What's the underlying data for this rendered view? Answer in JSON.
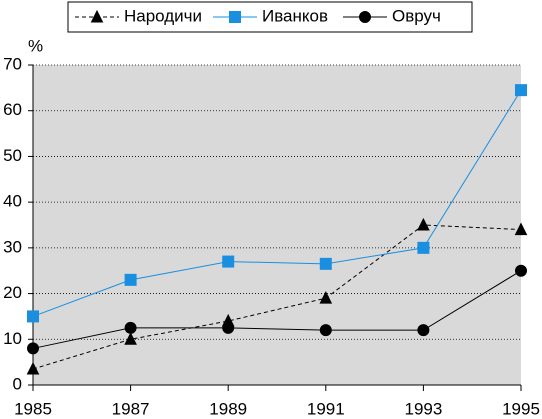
{
  "chart_data": {
    "type": "line",
    "y_label": "%",
    "x": [
      1985,
      1987,
      1989,
      1991,
      1993,
      1995
    ],
    "xlim": [
      1985,
      1995
    ],
    "xticks": [
      1985,
      1987,
      1989,
      1991,
      1993,
      1995
    ],
    "ylim": [
      0,
      70
    ],
    "yticks": [
      0,
      10,
      20,
      30,
      40,
      50,
      60,
      70
    ],
    "grid": true,
    "legend": "top",
    "series": [
      {
        "name": "Народичи",
        "color": "#000000",
        "marker": "triangle",
        "dashed": true,
        "values": [
          3.5,
          10,
          14,
          19,
          35,
          34
        ]
      },
      {
        "name": "Иванков",
        "color": "#1a8fe0",
        "marker": "square",
        "dashed": false,
        "values": [
          15,
          23,
          27,
          26.5,
          30,
          64.5
        ]
      },
      {
        "name": "Овруч",
        "color": "#000000",
        "marker": "circle",
        "dashed": false,
        "values": [
          8,
          12.5,
          12.5,
          12,
          12,
          25
        ]
      }
    ]
  }
}
